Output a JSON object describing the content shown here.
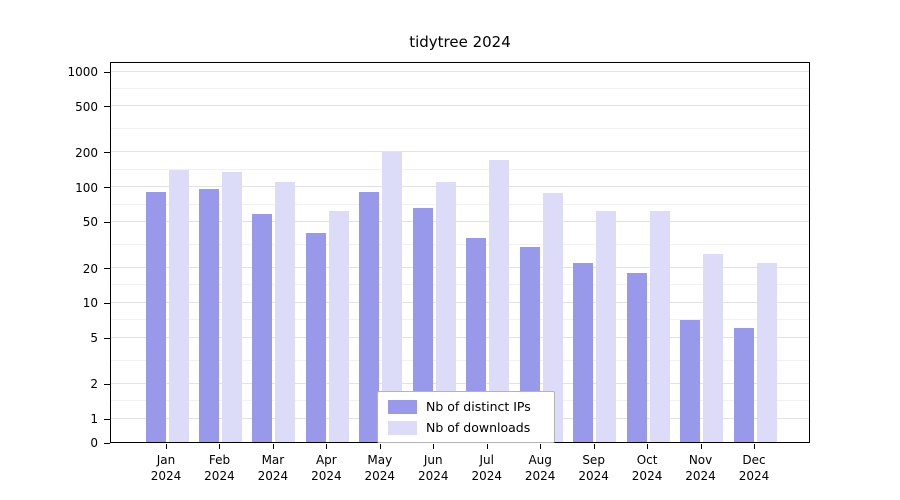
{
  "chart_data": {
    "type": "bar",
    "title": "tidytree 2024",
    "yscale": "log",
    "grid": true,
    "legend_position": "bottom-center-inside",
    "ylim": [
      0,
      1000
    ],
    "yticks": [
      0,
      1,
      2,
      5,
      10,
      20,
      50,
      100,
      200,
      500,
      1000
    ],
    "year": "2024",
    "categories": [
      "Jan",
      "Feb",
      "Mar",
      "Apr",
      "May",
      "Jun",
      "Jul",
      "Aug",
      "Sep",
      "Oct",
      "Nov",
      "Dec"
    ],
    "series": [
      {
        "name": "Nb of distinct IPs",
        "color": "#9999ec",
        "values": [
          90,
          95,
          58,
          40,
          90,
          65,
          36,
          30,
          22,
          18,
          7,
          6
        ]
      },
      {
        "name": "Nb of downloads",
        "color": "#dcdcf8",
        "values": [
          140,
          135,
          110,
          62,
          198,
          110,
          170,
          88,
          62,
          62,
          26,
          22
        ]
      }
    ]
  }
}
